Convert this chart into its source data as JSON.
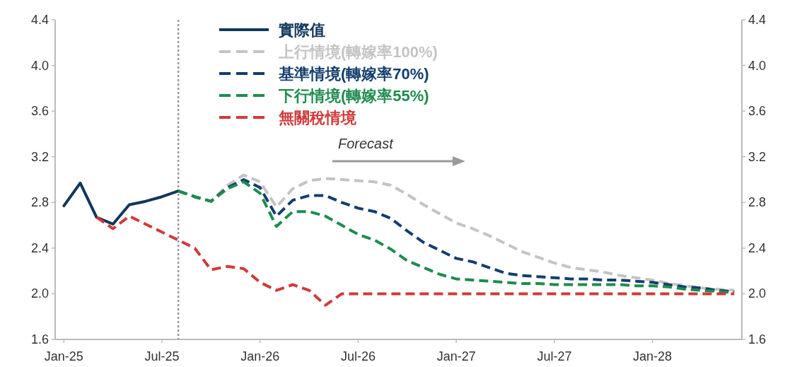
{
  "chart_data": {
    "type": "line",
    "x": [
      "2025-01",
      "2025-02",
      "2025-03",
      "2025-04",
      "2025-05",
      "2025-06",
      "2025-07",
      "2025-08",
      "2025-09",
      "2025-10",
      "2025-11",
      "2025-12",
      "2026-01",
      "2026-02",
      "2026-03",
      "2026-04",
      "2026-05",
      "2026-06",
      "2026-07",
      "2026-08",
      "2026-09",
      "2026-10",
      "2026-11",
      "2026-12",
      "2027-01",
      "2027-02",
      "2027-03",
      "2027-04",
      "2027-05",
      "2027-06",
      "2027-07",
      "2027-08",
      "2027-09",
      "2027-10",
      "2027-11",
      "2027-12",
      "2028-01",
      "2028-02",
      "2028-03",
      "2028-04",
      "2028-05",
      "2028-06"
    ],
    "series": [
      {
        "name": "實際值",
        "color": "#10375c",
        "line_style": "solid",
        "values": [
          2.77,
          2.97,
          2.67,
          2.61,
          2.78,
          2.81,
          2.85,
          2.9,
          null,
          null,
          null,
          null,
          null,
          null,
          null,
          null,
          null,
          null,
          null,
          null,
          null,
          null,
          null,
          null,
          null,
          null,
          null,
          null,
          null,
          null,
          null,
          null,
          null,
          null,
          null,
          null,
          null,
          null,
          null,
          null,
          null,
          null
        ]
      },
      {
        "name": "上行情境(轉嫁率100%)",
        "color": "#c4c4c4",
        "line_style": "dashed",
        "values": [
          null,
          null,
          null,
          null,
          null,
          null,
          null,
          2.9,
          2.85,
          2.81,
          2.95,
          3.04,
          2.98,
          2.76,
          2.92,
          2.99,
          3.01,
          3.0,
          2.99,
          2.98,
          2.95,
          2.87,
          2.78,
          2.7,
          2.62,
          2.57,
          2.51,
          2.44,
          2.37,
          2.32,
          2.27,
          2.23,
          2.21,
          2.19,
          2.16,
          2.14,
          2.12,
          2.09,
          2.07,
          2.05,
          2.04,
          2.03
        ]
      },
      {
        "name": "基準情境(轉嫁率70%)",
        "color": "#123e6e",
        "line_style": "dashed",
        "values": [
          null,
          null,
          null,
          null,
          null,
          null,
          null,
          2.9,
          2.85,
          2.81,
          2.93,
          3.0,
          2.93,
          2.68,
          2.82,
          2.86,
          2.86,
          2.8,
          2.75,
          2.72,
          2.66,
          2.55,
          2.45,
          2.38,
          2.31,
          2.28,
          2.23,
          2.18,
          2.16,
          2.15,
          2.14,
          2.13,
          2.13,
          2.12,
          2.12,
          2.11,
          2.1,
          2.08,
          2.06,
          2.05,
          2.03,
          2.02
        ]
      },
      {
        "name": "下行情境(轉嫁率55%)",
        "color": "#1e8c4e",
        "line_style": "dashed",
        "values": [
          null,
          null,
          null,
          null,
          null,
          null,
          null,
          2.9,
          2.85,
          2.81,
          2.92,
          2.98,
          2.88,
          2.59,
          2.72,
          2.72,
          2.68,
          2.6,
          2.52,
          2.47,
          2.39,
          2.29,
          2.23,
          2.17,
          2.13,
          2.12,
          2.11,
          2.1,
          2.09,
          2.09,
          2.08,
          2.08,
          2.08,
          2.08,
          2.08,
          2.07,
          2.07,
          2.06,
          2.04,
          2.03,
          2.02,
          2.01
        ]
      },
      {
        "name": "無關稅情境",
        "color": "#d03a3a",
        "line_style": "dashed",
        "values": [
          null,
          null,
          2.67,
          2.57,
          2.68,
          2.61,
          2.54,
          2.47,
          2.4,
          2.21,
          2.24,
          2.22,
          2.1,
          2.03,
          2.08,
          2.03,
          1.9,
          2.0,
          2.0,
          2.0,
          2.0,
          2.0,
          2.0,
          2.0,
          2.0,
          2.0,
          2.0,
          2.0,
          2.0,
          2.0,
          2.0,
          2.0,
          2.0,
          2.0,
          2.0,
          2.0,
          2.0,
          2.0,
          2.0,
          2.0,
          2.0,
          2.0
        ]
      }
    ],
    "xlim": [
      "2024-12-15",
      "2028-06-15"
    ],
    "xticks": [
      {
        "value": "2025-01",
        "label": "Jan-25"
      },
      {
        "value": "2025-07",
        "label": "Jul-25"
      },
      {
        "value": "2026-01",
        "label": "Jan-26"
      },
      {
        "value": "2026-07",
        "label": "Jul-26"
      },
      {
        "value": "2027-01",
        "label": "Jan-27"
      },
      {
        "value": "2027-07",
        "label": "Jul-27"
      },
      {
        "value": "2028-01",
        "label": "Jan-28"
      }
    ],
    "ylim": [
      1.6,
      4.4
    ],
    "yticks": [
      {
        "value": 1.6,
        "label": "1.6"
      },
      {
        "value": 2.0,
        "label": "2.0"
      },
      {
        "value": 2.4,
        "label": "2.4"
      },
      {
        "value": 2.8,
        "label": "2.8"
      },
      {
        "value": 3.2,
        "label": "3.2"
      },
      {
        "value": 3.6,
        "label": "3.6"
      },
      {
        "value": 4.0,
        "label": "4.0"
      },
      {
        "value": 4.4,
        "label": "4.4"
      }
    ],
    "y2lim": [
      1.6,
      4.4
    ],
    "y2ticks": [
      {
        "value": 1.6,
        "label": "1.6"
      },
      {
        "value": 2.0,
        "label": "2.0"
      },
      {
        "value": 2.4,
        "label": "2.4"
      },
      {
        "value": 2.8,
        "label": "2.8"
      },
      {
        "value": 3.2,
        "label": "3.2"
      },
      {
        "value": 3.6,
        "label": "3.6"
      },
      {
        "value": 4.0,
        "label": "4.0"
      },
      {
        "value": 4.4,
        "label": "4.4"
      }
    ],
    "ref_lines": [
      {
        "axis": "x",
        "value": "2025-08",
        "color": "#999999",
        "line_style": "dotted"
      }
    ],
    "annotations": [
      "Forecast"
    ],
    "legend": "top",
    "grid": false
  }
}
